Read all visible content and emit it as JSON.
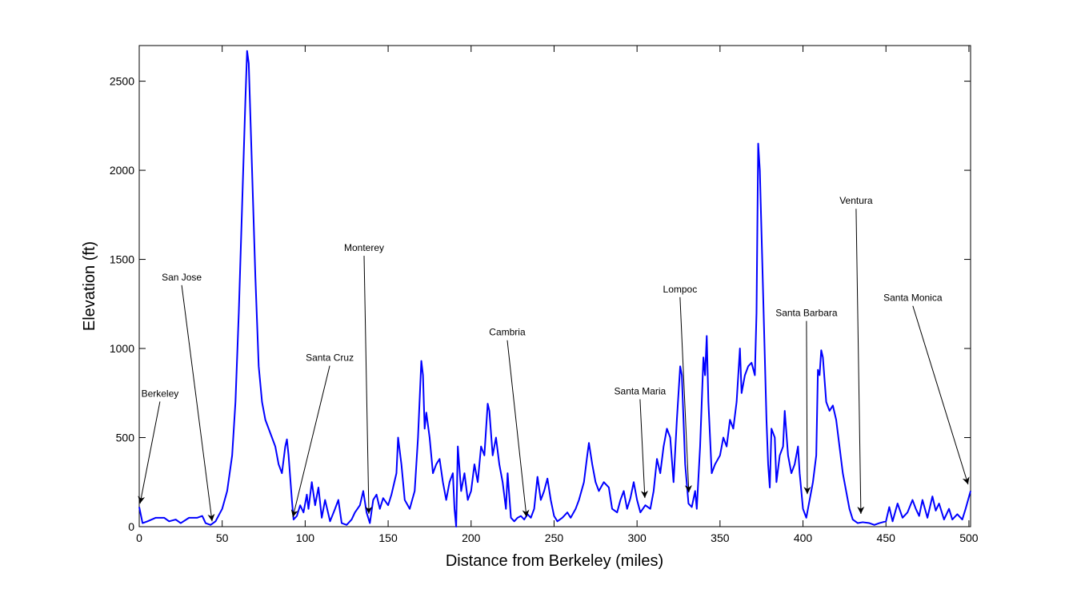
{
  "chart_data": {
    "type": "line",
    "xlabel": "Distance from Berkeley (miles)",
    "ylabel": "Elevation (ft)",
    "xlim": [
      0,
      501
    ],
    "ylim": [
      0,
      2700
    ],
    "xticks": [
      0,
      50,
      100,
      150,
      200,
      250,
      300,
      350,
      400,
      450,
      500
    ],
    "yticks": [
      0,
      500,
      1000,
      1500,
      2000,
      2500
    ],
    "series": [
      {
        "color": "#0000ff",
        "x": [
          0,
          2,
          5,
          10,
          15,
          18,
          22,
          25,
          30,
          35,
          38,
          40,
          43,
          46,
          50,
          53,
          56,
          58,
          60,
          62,
          64,
          65,
          66,
          67,
          68,
          70,
          72,
          74,
          76,
          78,
          80,
          82,
          84,
          86,
          88,
          89,
          90,
          92,
          93,
          95,
          97,
          99,
          101,
          102,
          104,
          106,
          108,
          110,
          112,
          115,
          118,
          120,
          122,
          125,
          128,
          130,
          133,
          135,
          137,
          139,
          141,
          143,
          145,
          147,
          150,
          152,
          155,
          156,
          158,
          160,
          163,
          166,
          168,
          170,
          171,
          172,
          173,
          175,
          177,
          179,
          181,
          183,
          185,
          187,
          189,
          190,
          191,
          192,
          194,
          196,
          198,
          200,
          202,
          204,
          206,
          208,
          210,
          211,
          213,
          215,
          217,
          219,
          221,
          222,
          224,
          226,
          228,
          230,
          232,
          234,
          236,
          238,
          240,
          242,
          244,
          246,
          248,
          250,
          252,
          255,
          258,
          260,
          263,
          265,
          268,
          270,
          271,
          273,
          275,
          277,
          280,
          283,
          285,
          288,
          290,
          292,
          294,
          296,
          298,
          300,
          302,
          305,
          308,
          310,
          312,
          314,
          316,
          318,
          320,
          322,
          324,
          326,
          327,
          329,
          331,
          333,
          335,
          336,
          338,
          340,
          341,
          342,
          343,
          345,
          347,
          350,
          352,
          354,
          356,
          358,
          360,
          362,
          363,
          365,
          367,
          369,
          371,
          372,
          373,
          374,
          376,
          378,
          379,
          380,
          381,
          383,
          384,
          386,
          388,
          389,
          391,
          393,
          395,
          397,
          398,
          400,
          402,
          404,
          406,
          408,
          409,
          410,
          411,
          412,
          414,
          416,
          418,
          420,
          422,
          424,
          426,
          428,
          430,
          433,
          436,
          440,
          443,
          446,
          450,
          452,
          454,
          457,
          460,
          463,
          466,
          468,
          470,
          472,
          475,
          478,
          480,
          482,
          485,
          488,
          490,
          493,
          496,
          498,
          501
        ],
        "values": [
          110,
          20,
          30,
          50,
          50,
          30,
          40,
          20,
          50,
          50,
          60,
          20,
          10,
          30,
          100,
          200,
          400,
          700,
          1200,
          1800,
          2400,
          2670,
          2600,
          2300,
          2000,
          1400,
          900,
          700,
          600,
          550,
          500,
          450,
          350,
          300,
          450,
          490,
          400,
          150,
          40,
          60,
          120,
          80,
          180,
          100,
          250,
          120,
          220,
          50,
          150,
          30,
          100,
          150,
          20,
          10,
          40,
          80,
          120,
          200,
          80,
          20,
          150,
          180,
          100,
          160,
          120,
          180,
          300,
          500,
          350,
          150,
          100,
          200,
          500,
          930,
          850,
          550,
          640,
          500,
          300,
          350,
          380,
          250,
          150,
          250,
          300,
          100,
          0,
          450,
          200,
          300,
          150,
          200,
          350,
          250,
          450,
          400,
          690,
          650,
          400,
          500,
          350,
          250,
          100,
          300,
          50,
          30,
          50,
          60,
          40,
          70,
          50,
          100,
          280,
          150,
          200,
          270,
          150,
          60,
          30,
          50,
          80,
          50,
          100,
          150,
          250,
          400,
          470,
          350,
          250,
          200,
          250,
          220,
          100,
          80,
          150,
          200,
          100,
          160,
          250,
          150,
          80,
          120,
          100,
          200,
          380,
          300,
          450,
          550,
          500,
          250,
          600,
          900,
          850,
          350,
          130,
          110,
          200,
          100,
          450,
          950,
          850,
          1070,
          700,
          300,
          350,
          400,
          500,
          450,
          600,
          550,
          700,
          1000,
          750,
          850,
          900,
          920,
          850,
          1200,
          2150,
          2000,
          1300,
          600,
          350,
          220,
          550,
          500,
          250,
          400,
          450,
          650,
          400,
          300,
          350,
          450,
          300,
          100,
          50,
          150,
          250,
          400,
          880,
          850,
          990,
          950,
          700,
          650,
          680,
          600,
          450,
          300,
          200,
          100,
          40,
          20,
          25,
          20,
          10,
          20,
          30,
          110,
          30,
          130,
          50,
          80,
          150,
          100,
          60,
          150,
          50,
          170,
          90,
          130,
          40,
          100,
          40,
          70,
          40,
          100,
          200
        ]
      }
    ],
    "annotations": [
      {
        "text": "Berkeley",
        "xy": [
          0.5,
          130
        ],
        "xytext": [
          12.5,
          747
        ]
      },
      {
        "text": "San Jose",
        "xy": [
          43.9,
          30
        ],
        "xytext": [
          25.6,
          1400
        ]
      },
      {
        "text": "Santa Cruz",
        "xy": [
          92.6,
          54
        ],
        "xytext": [
          114.8,
          948
        ]
      },
      {
        "text": "Monterey",
        "xy": [
          138.4,
          72
        ],
        "xytext": [
          135.5,
          1565
        ]
      },
      {
        "text": "Cambria",
        "xy": [
          233.4,
          54
        ],
        "xytext": [
          221.8,
          1091
        ]
      },
      {
        "text": "Santa Maria",
        "xy": [
          304.7,
          161
        ],
        "xytext": [
          301.8,
          760
        ]
      },
      {
        "text": "Lompoc",
        "xy": [
          331.2,
          192
        ],
        "xytext": [
          325.9,
          1333
        ]
      },
      {
        "text": "Santa Barbara",
        "xy": [
          402.6,
          183
        ],
        "xytext": [
          402.1,
          1199
        ]
      },
      {
        "text": "Ventura",
        "xy": [
          434.9,
          72
        ],
        "xytext": [
          432.0,
          1829
        ]
      },
      {
        "text": "Santa Monica",
        "xy": [
          499.5,
          237
        ],
        "xytext": [
          466.2,
          1284
        ]
      }
    ]
  }
}
